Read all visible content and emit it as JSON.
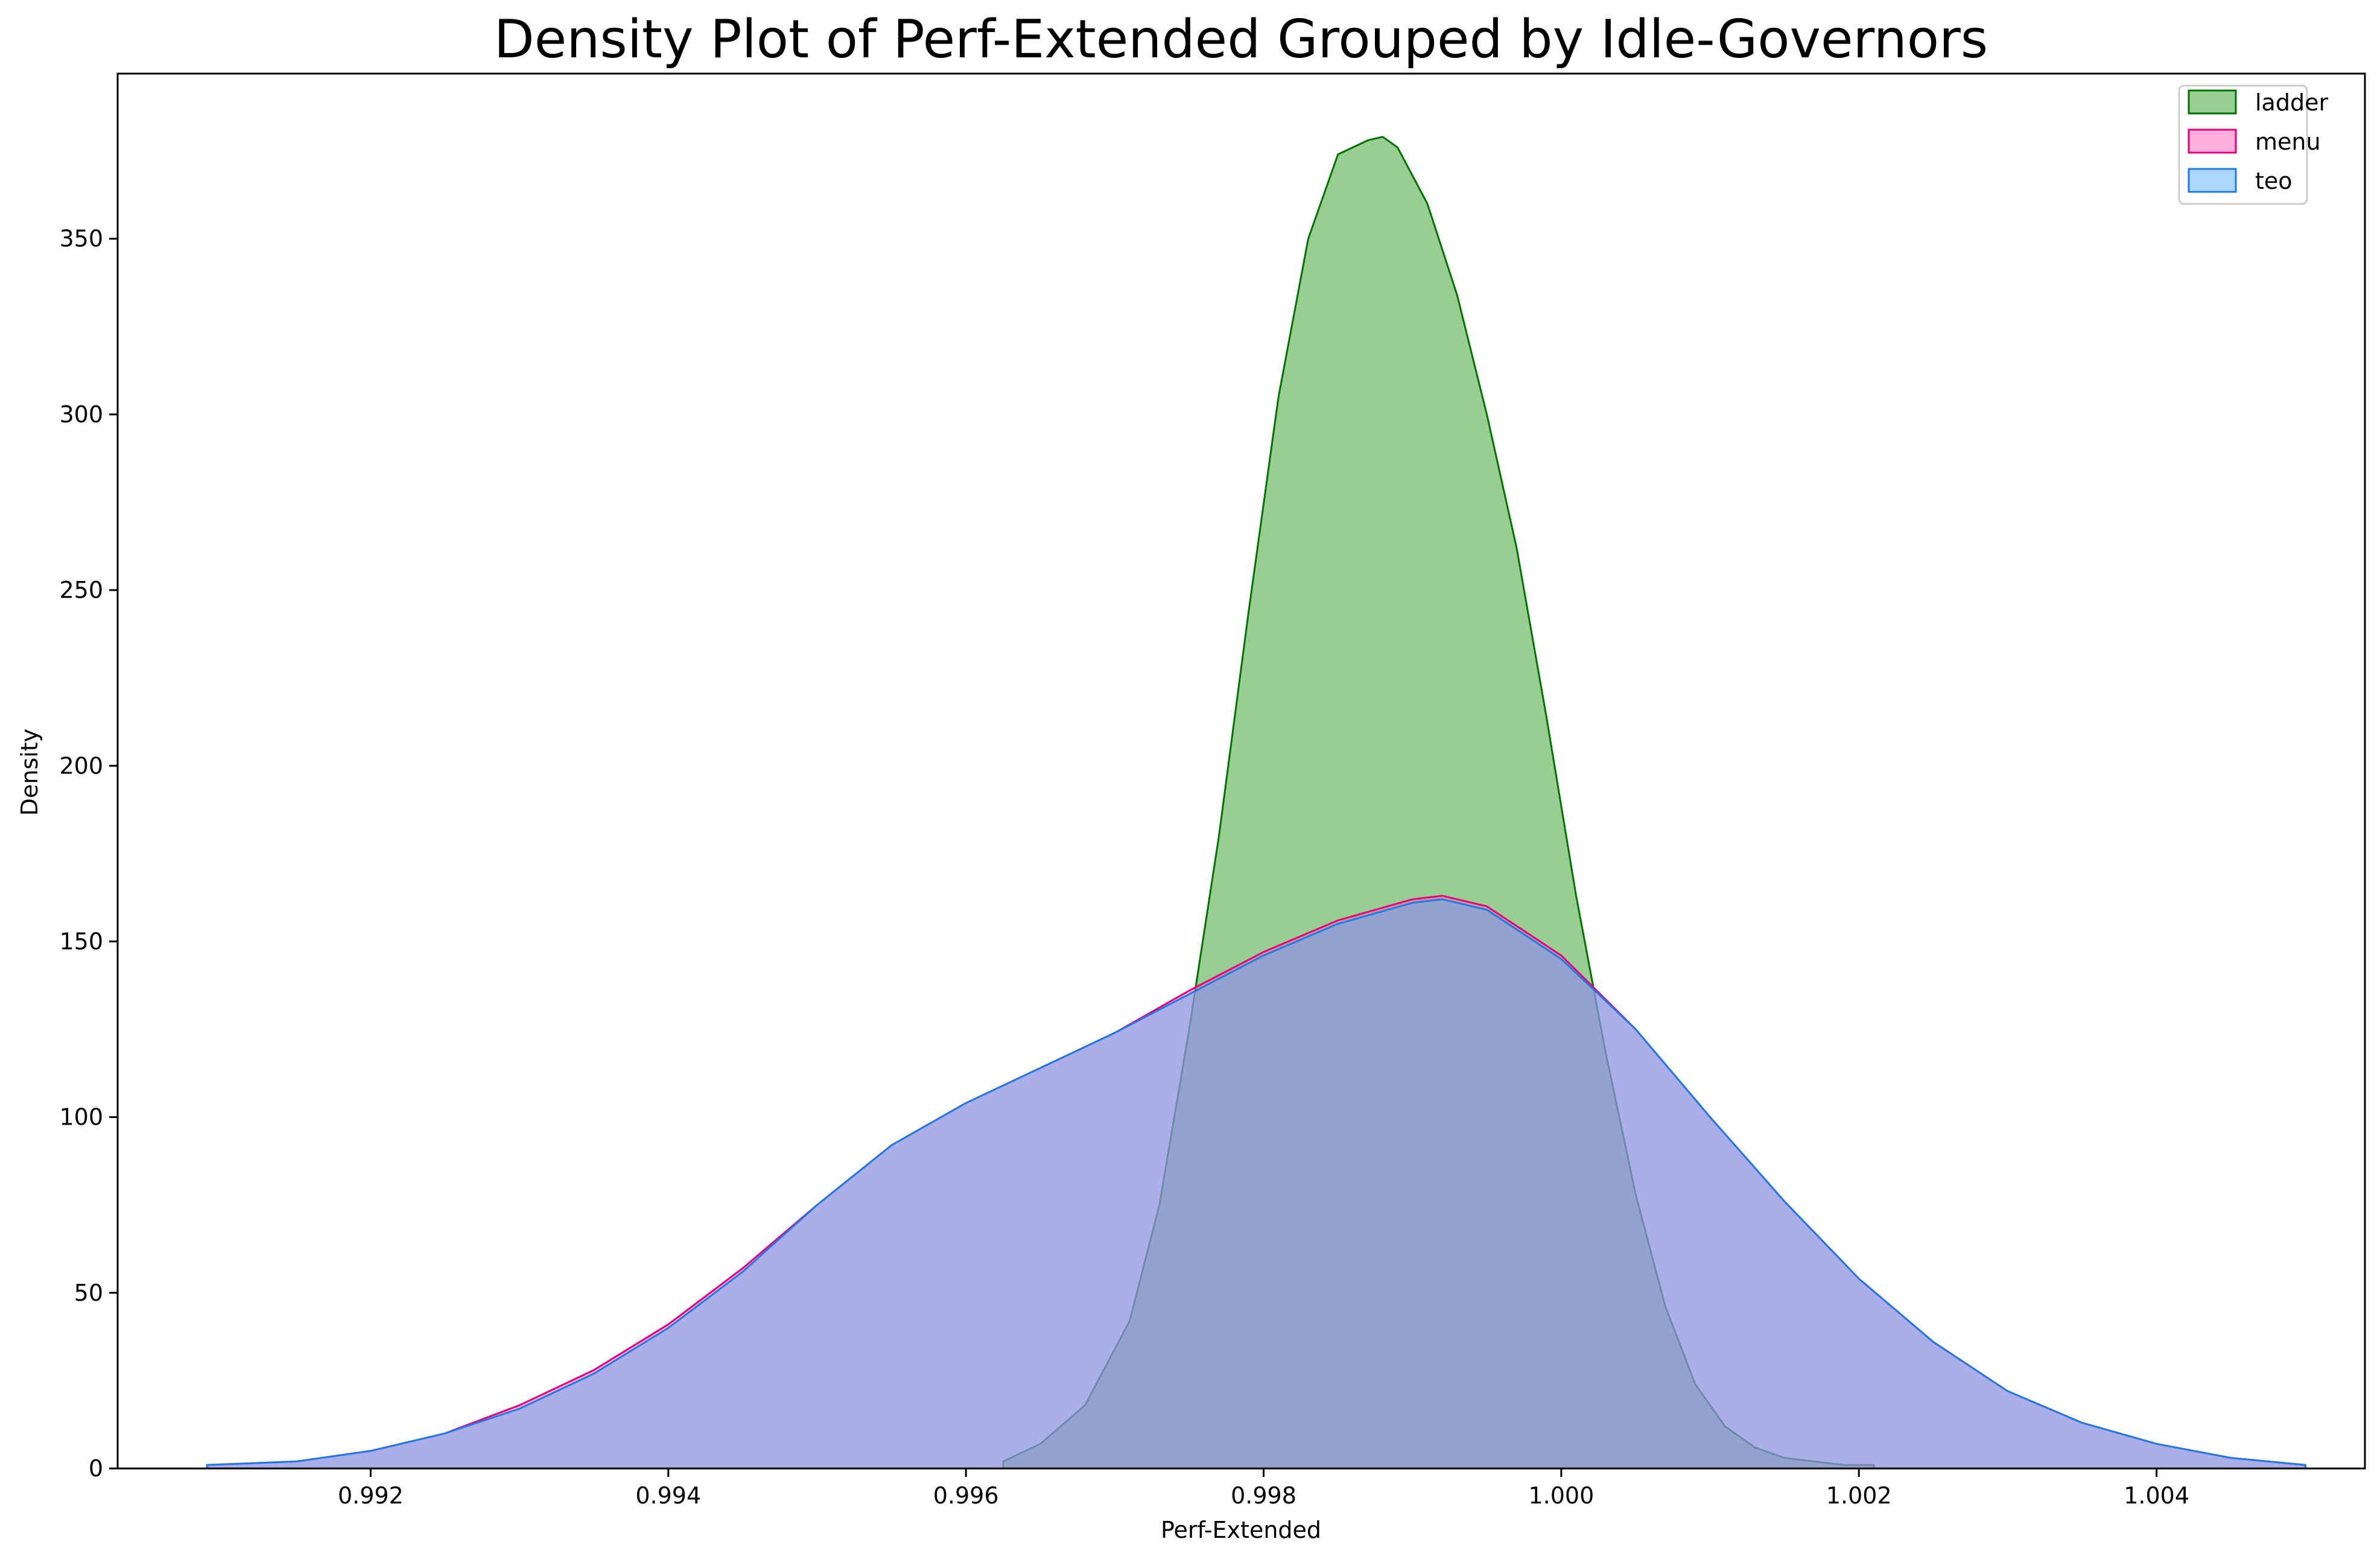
{
  "chart_data": {
    "type": "area",
    "title": "Density Plot of Perf-Extended Grouped by Idle-Governors",
    "xlabel": "Perf-Extended",
    "ylabel": "Density",
    "xlim": [
      0.9903,
      1.0054
    ],
    "ylim": [
      0,
      397
    ],
    "xticks": [
      0.992,
      0.994,
      0.996,
      0.998,
      1.0,
      1.002,
      1.004
    ],
    "xtick_labels": [
      "0.992",
      "0.994",
      "0.996",
      "0.998",
      "1.000",
      "1.002",
      "1.004"
    ],
    "yticks": [
      0,
      50,
      100,
      150,
      200,
      250,
      300,
      350
    ],
    "ytick_labels": [
      "0",
      "50",
      "100",
      "150",
      "200",
      "250",
      "300",
      "350"
    ],
    "grid": false,
    "legend_position": "top-right",
    "series": [
      {
        "name": "ladder",
        "line_color": "#007400",
        "fill_color": "#339e28",
        "fill_opacity": 0.5,
        "x": [
          0.99625,
          0.9965,
          0.9968,
          0.9971,
          0.9973,
          0.9975,
          0.9977,
          0.9979,
          0.9981,
          0.9983,
          0.9985,
          0.9987,
          0.9988,
          0.9989,
          0.9991,
          0.9993,
          0.9995,
          0.9997,
          0.9999,
          1.0001,
          1.0003,
          1.0005,
          1.0007,
          1.0009,
          1.0011,
          1.0013,
          1.0015,
          1.0017,
          1.0019,
          1.0021
        ],
        "y": [
          2,
          7,
          18,
          42,
          75,
          125,
          180,
          244,
          305,
          350,
          374,
          378,
          379,
          376,
          360,
          334,
          300,
          262,
          214,
          163,
          118,
          78,
          46,
          24,
          12,
          6,
          3,
          2,
          1,
          1
        ]
      },
      {
        "name": "menu",
        "line_color": "#e6007e",
        "fill_color": "#ff5fb4",
        "fill_opacity": 0.5,
        "x": [
          0.9909,
          0.9915,
          0.992,
          0.9925,
          0.993,
          0.9935,
          0.994,
          0.9945,
          0.995,
          0.9955,
          0.996,
          0.9965,
          0.997,
          0.9975,
          0.998,
          0.9985,
          0.999,
          0.9992,
          0.9995,
          1.0,
          1.0005,
          1.001,
          1.0015,
          1.002,
          1.0025,
          1.003,
          1.0035,
          1.004,
          1.0045,
          1.005
        ],
        "y": [
          1,
          2,
          5,
          10,
          18,
          28,
          41,
          57,
          75,
          92,
          104,
          114,
          124,
          136,
          147,
          156,
          162,
          163,
          160,
          146,
          125,
          100,
          76,
          54,
          36,
          22,
          13,
          7,
          3,
          1
        ]
      },
      {
        "name": "teo",
        "line_color": "#1f7ae6",
        "fill_color": "#59aef9",
        "fill_opacity": 0.5,
        "x": [
          0.9909,
          0.9915,
          0.992,
          0.9925,
          0.993,
          0.9935,
          0.994,
          0.9945,
          0.995,
          0.9955,
          0.996,
          0.9965,
          0.997,
          0.9975,
          0.998,
          0.9985,
          0.999,
          0.9992,
          0.9995,
          1.0,
          1.0005,
          1.001,
          1.0015,
          1.002,
          1.0025,
          1.003,
          1.0035,
          1.004,
          1.0045,
          1.005
        ],
        "y": [
          1,
          2,
          5,
          10,
          17,
          27,
          40,
          56,
          75,
          92,
          104,
          114,
          124,
          135,
          146,
          155,
          161,
          162,
          159,
          145,
          125,
          100,
          76,
          54,
          36,
          22,
          13,
          7,
          3,
          1
        ]
      }
    ]
  }
}
